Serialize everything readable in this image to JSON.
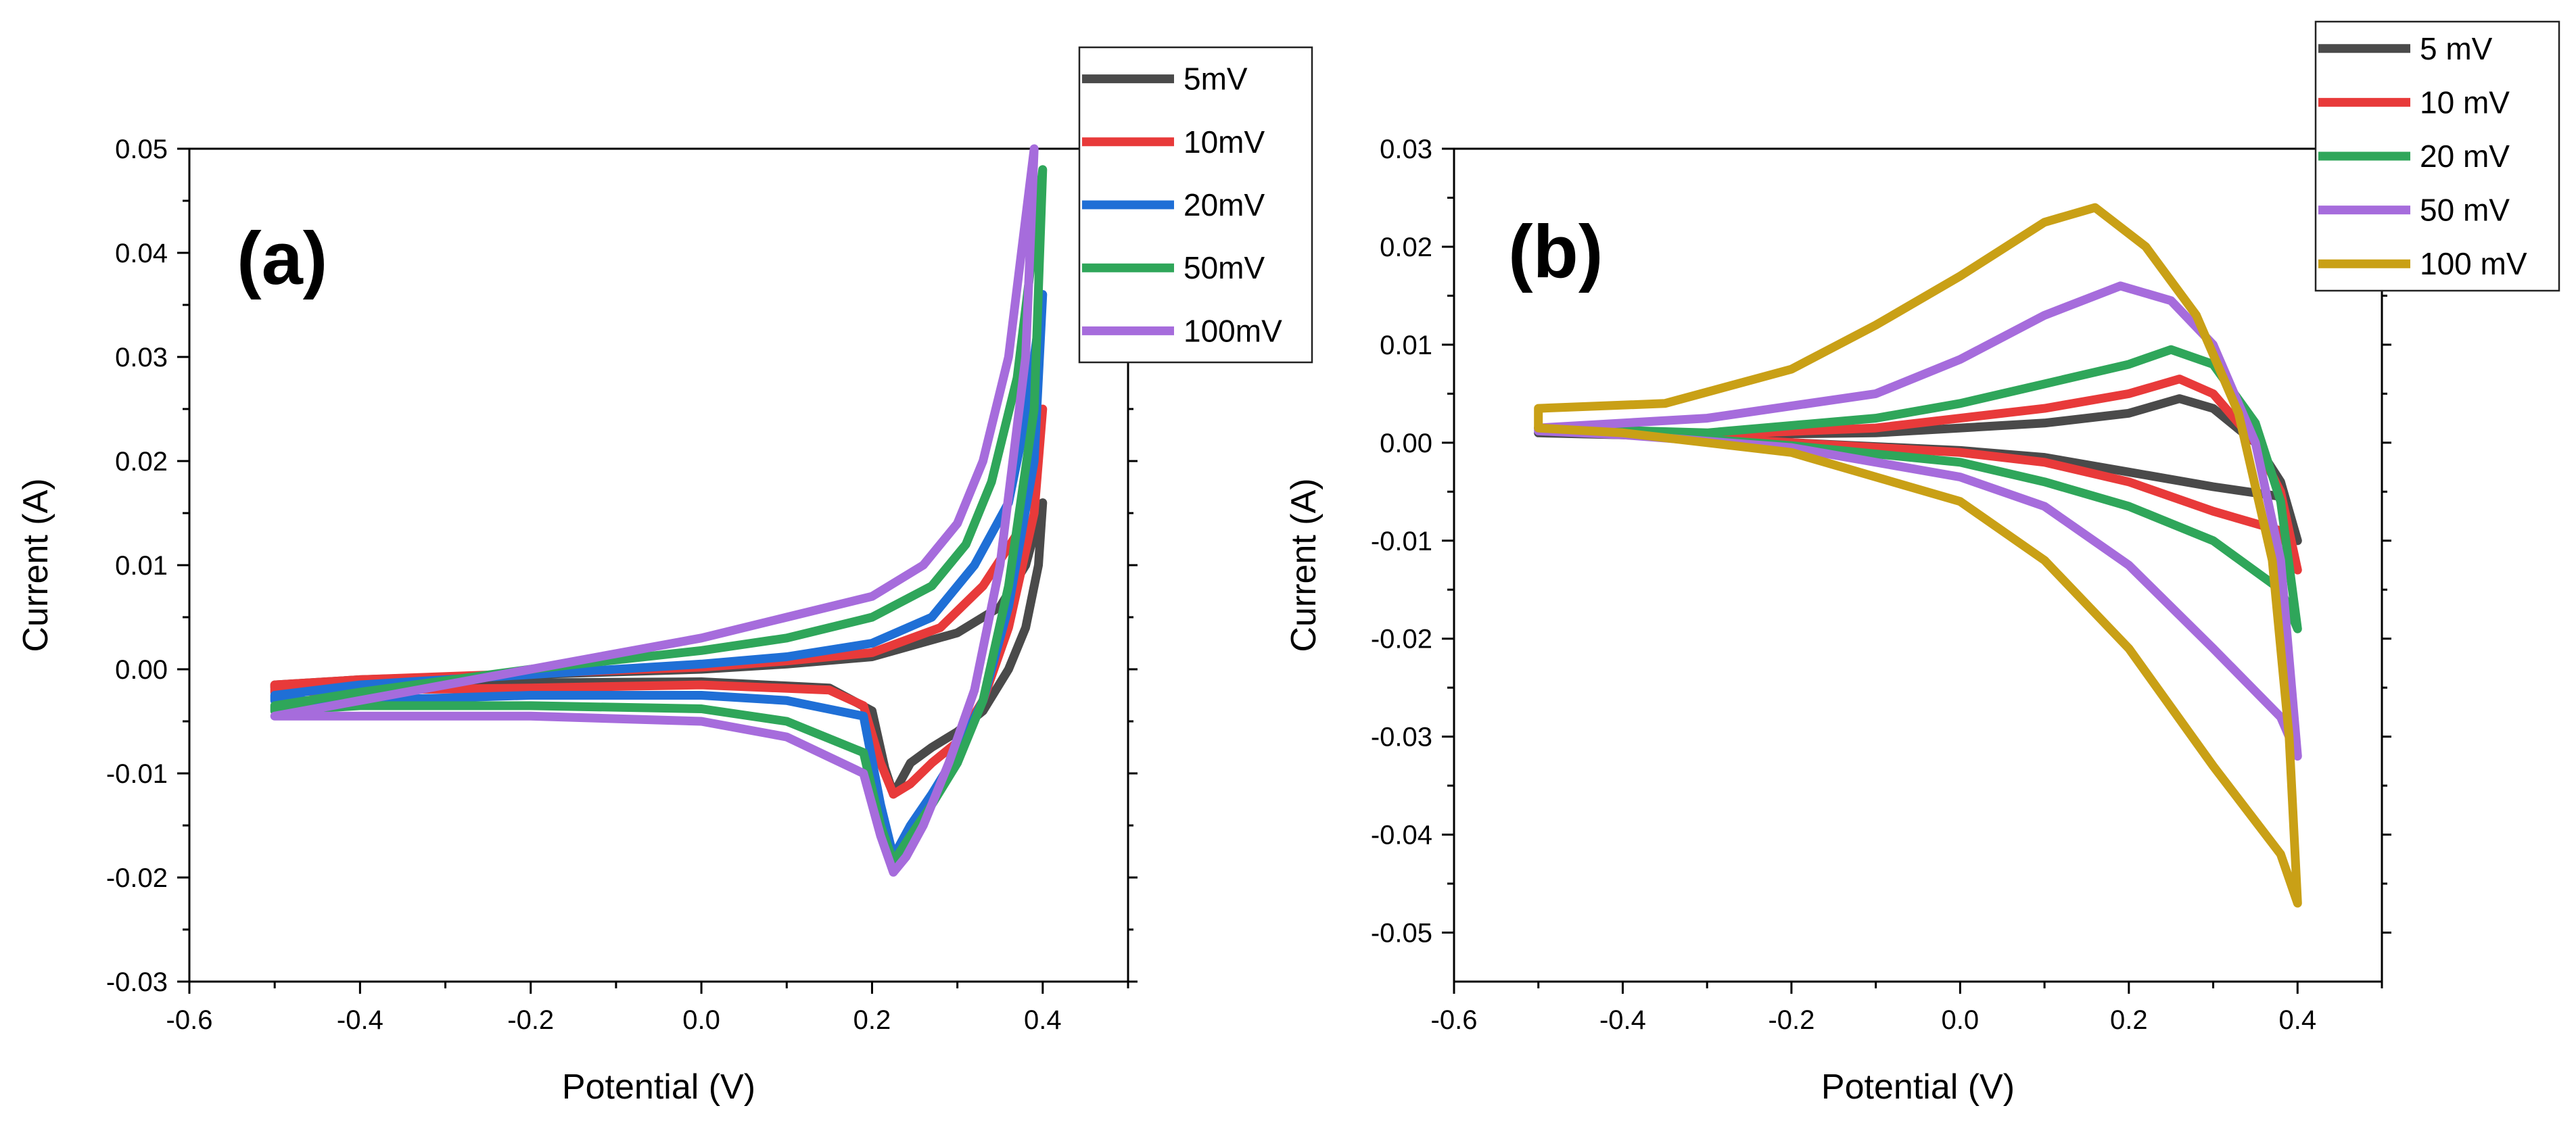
{
  "chart_data": [
    {
      "type": "line",
      "panel_label": "(a)",
      "xlabel": "Potential (V)",
      "ylabel": "Current (A)",
      "xlim": [
        -0.6,
        0.5
      ],
      "ylim": [
        -0.03,
        0.05
      ],
      "xticks": [
        -0.6,
        -0.4,
        -0.2,
        0.0,
        0.2,
        0.4
      ],
      "yticks": [
        -0.03,
        -0.02,
        -0.01,
        0.0,
        0.01,
        0.02,
        0.03,
        0.04,
        0.05
      ],
      "xtick_labels": [
        "-0.6",
        "-0.4",
        "-0.2",
        "0.0",
        "0.2",
        "0.4"
      ],
      "ytick_labels": [
        "-0.03",
        "-0.02",
        "-0.01",
        "0.00",
        "0.01",
        "0.02",
        "0.03",
        "0.04",
        "0.05"
      ],
      "grid": false,
      "legend_position": "top-right, outside plot",
      "series": [
        {
          "name": "5mV",
          "color": "#4a4a4a",
          "points": [
            [
              -0.5,
              -0.0015
            ],
            [
              -0.4,
              -0.001
            ],
            [
              -0.2,
              -0.0005
            ],
            [
              0.0,
              0.0
            ],
            [
              0.1,
              0.0005
            ],
            [
              0.2,
              0.0012
            ],
            [
              0.3,
              0.0035
            ],
            [
              0.35,
              0.006
            ],
            [
              0.38,
              0.01
            ],
            [
              0.4,
              0.016
            ],
            [
              0.395,
              0.01
            ],
            [
              0.38,
              0.004
            ],
            [
              0.36,
              0.0
            ],
            [
              0.33,
              -0.004
            ],
            [
              0.3,
              -0.006
            ],
            [
              0.27,
              -0.0075
            ],
            [
              0.245,
              -0.009
            ],
            [
              0.225,
              -0.012
            ],
            [
              0.215,
              -0.0095
            ],
            [
              0.2,
              -0.004
            ],
            [
              0.15,
              -0.0018
            ],
            [
              0.0,
              -0.0012
            ],
            [
              -0.2,
              -0.0013
            ],
            [
              -0.4,
              -0.0015
            ],
            [
              -0.5,
              -0.0017
            ]
          ]
        },
        {
          "name": "10mV",
          "color": "#e83a3a",
          "points": [
            [
              -0.5,
              -0.0015
            ],
            [
              -0.4,
              -0.001
            ],
            [
              -0.2,
              -0.0004
            ],
            [
              0.0,
              0.0002
            ],
            [
              0.1,
              0.0008
            ],
            [
              0.2,
              0.0016
            ],
            [
              0.28,
              0.004
            ],
            [
              0.33,
              0.008
            ],
            [
              0.37,
              0.013
            ],
            [
              0.4,
              0.025
            ],
            [
              0.39,
              0.015
            ],
            [
              0.36,
              0.004
            ],
            [
              0.33,
              -0.003
            ],
            [
              0.3,
              -0.007
            ],
            [
              0.27,
              -0.009
            ],
            [
              0.245,
              -0.011
            ],
            [
              0.225,
              -0.012
            ],
            [
              0.21,
              -0.009
            ],
            [
              0.19,
              -0.0035
            ],
            [
              0.15,
              -0.002
            ],
            [
              0.0,
              -0.0015
            ],
            [
              -0.2,
              -0.0018
            ],
            [
              -0.4,
              -0.002
            ],
            [
              -0.5,
              -0.0022
            ]
          ]
        },
        {
          "name": "20mV",
          "color": "#1f6fd6",
          "points": [
            [
              -0.5,
              -0.0025
            ],
            [
              -0.4,
              -0.0015
            ],
            [
              -0.2,
              -0.0005
            ],
            [
              0.0,
              0.0005
            ],
            [
              0.1,
              0.0012
            ],
            [
              0.2,
              0.0025
            ],
            [
              0.27,
              0.005
            ],
            [
              0.32,
              0.01
            ],
            [
              0.36,
              0.016
            ],
            [
              0.38,
              0.024
            ],
            [
              0.4,
              0.036
            ],
            [
              0.39,
              0.02
            ],
            [
              0.36,
              0.006
            ],
            [
              0.33,
              -0.003
            ],
            [
              0.3,
              -0.008
            ],
            [
              0.27,
              -0.012
            ],
            [
              0.245,
              -0.015
            ],
            [
              0.225,
              -0.018
            ],
            [
              0.21,
              -0.013
            ],
            [
              0.19,
              -0.0045
            ],
            [
              0.1,
              -0.003
            ],
            [
              0.0,
              -0.0025
            ],
            [
              -0.2,
              -0.0025
            ],
            [
              -0.4,
              -0.003
            ],
            [
              -0.5,
              -0.003
            ]
          ]
        },
        {
          "name": "50mV",
          "color": "#2fa65a",
          "points": [
            [
              -0.5,
              -0.0035
            ],
            [
              -0.4,
              -0.0022
            ],
            [
              -0.2,
              0.0
            ],
            [
              0.0,
              0.0018
            ],
            [
              0.1,
              0.003
            ],
            [
              0.2,
              0.005
            ],
            [
              0.27,
              0.008
            ],
            [
              0.31,
              0.012
            ],
            [
              0.34,
              0.018
            ],
            [
              0.37,
              0.028
            ],
            [
              0.4,
              0.048
            ],
            [
              0.39,
              0.025
            ],
            [
              0.36,
              0.008
            ],
            [
              0.33,
              -0.003
            ],
            [
              0.3,
              -0.009
            ],
            [
              0.27,
              -0.013
            ],
            [
              0.245,
              -0.016
            ],
            [
              0.225,
              -0.0185
            ],
            [
              0.21,
              -0.015
            ],
            [
              0.19,
              -0.008
            ],
            [
              0.1,
              -0.005
            ],
            [
              0.0,
              -0.0038
            ],
            [
              -0.2,
              -0.0035
            ],
            [
              -0.4,
              -0.0035
            ],
            [
              -0.5,
              -0.004
            ]
          ]
        },
        {
          "name": "100mV",
          "color": "#a66cdc",
          "points": [
            [
              -0.5,
              -0.0045
            ],
            [
              -0.4,
              -0.003
            ],
            [
              -0.2,
              0.0
            ],
            [
              0.0,
              0.003
            ],
            [
              0.1,
              0.005
            ],
            [
              0.2,
              0.007
            ],
            [
              0.26,
              0.01
            ],
            [
              0.3,
              0.014
            ],
            [
              0.33,
              0.02
            ],
            [
              0.36,
              0.03
            ],
            [
              0.39,
              0.05
            ],
            [
              0.38,
              0.03
            ],
            [
              0.35,
              0.01
            ],
            [
              0.32,
              -0.002
            ],
            [
              0.29,
              -0.009
            ],
            [
              0.26,
              -0.015
            ],
            [
              0.24,
              -0.018
            ],
            [
              0.225,
              -0.0195
            ],
            [
              0.21,
              -0.016
            ],
            [
              0.19,
              -0.01
            ],
            [
              0.1,
              -0.0065
            ],
            [
              0.0,
              -0.005
            ],
            [
              -0.2,
              -0.0045
            ],
            [
              -0.4,
              -0.0045
            ],
            [
              -0.5,
              -0.0045
            ]
          ]
        }
      ]
    },
    {
      "type": "line",
      "panel_label": "(b)",
      "xlabel": "Potential (V)",
      "ylabel": "Current (A)",
      "xlim": [
        -0.6,
        0.5
      ],
      "ylim": [
        -0.055,
        0.03
      ],
      "xticks": [
        -0.6,
        -0.4,
        -0.2,
        0.0,
        0.2,
        0.4
      ],
      "yticks": [
        -0.05,
        -0.04,
        -0.03,
        -0.02,
        -0.01,
        0.0,
        0.01,
        0.02,
        0.03
      ],
      "xtick_labels": [
        "-0.6",
        "-0.4",
        "-0.2",
        "0.0",
        "0.2",
        "0.4"
      ],
      "ytick_labels": [
        "-0.05",
        "-0.04",
        "-0.03",
        "-0.02",
        "-0.01",
        "0.00",
        "0.01",
        "0.02",
        "0.03"
      ],
      "grid": false,
      "legend_position": "top-right, outside plot",
      "series": [
        {
          "name": "5 mV",
          "color": "#4a4a4a",
          "points": [
            [
              -0.5,
              0.001
            ],
            [
              -0.3,
              0.0008
            ],
            [
              -0.1,
              0.001
            ],
            [
              0.0,
              0.0015
            ],
            [
              0.1,
              0.002
            ],
            [
              0.2,
              0.003
            ],
            [
              0.26,
              0.0045
            ],
            [
              0.3,
              0.0035
            ],
            [
              0.35,
              0.0
            ],
            [
              0.38,
              -0.004
            ],
            [
              0.4,
              -0.01
            ],
            [
              0.38,
              -0.0055
            ],
            [
              0.3,
              -0.0045
            ],
            [
              0.2,
              -0.003
            ],
            [
              0.1,
              -0.0015
            ],
            [
              0.0,
              -0.0008
            ],
            [
              -0.2,
              0.0
            ],
            [
              -0.4,
              0.0008
            ],
            [
              -0.5,
              0.001
            ]
          ]
        },
        {
          "name": "10 mV",
          "color": "#e83a3a",
          "points": [
            [
              -0.5,
              0.0015
            ],
            [
              -0.3,
              0.0008
            ],
            [
              -0.1,
              0.0015
            ],
            [
              0.0,
              0.0025
            ],
            [
              0.1,
              0.0035
            ],
            [
              0.2,
              0.005
            ],
            [
              0.26,
              0.0065
            ],
            [
              0.3,
              0.005
            ],
            [
              0.35,
              0.0
            ],
            [
              0.38,
              -0.005
            ],
            [
              0.4,
              -0.013
            ],
            [
              0.38,
              -0.009
            ],
            [
              0.3,
              -0.007
            ],
            [
              0.2,
              -0.004
            ],
            [
              0.1,
              -0.002
            ],
            [
              0.0,
              -0.001
            ],
            [
              -0.2,
              0.0
            ],
            [
              -0.4,
              0.001
            ],
            [
              -0.5,
              0.0015
            ]
          ]
        },
        {
          "name": "20 mV",
          "color": "#2fa65a",
          "points": [
            [
              -0.5,
              0.0015
            ],
            [
              -0.3,
              0.001
            ],
            [
              -0.1,
              0.0025
            ],
            [
              0.0,
              0.004
            ],
            [
              0.1,
              0.006
            ],
            [
              0.2,
              0.008
            ],
            [
              0.25,
              0.0095
            ],
            [
              0.3,
              0.008
            ],
            [
              0.35,
              0.002
            ],
            [
              0.38,
              -0.006
            ],
            [
              0.4,
              -0.019
            ],
            [
              0.38,
              -0.015
            ],
            [
              0.3,
              -0.01
            ],
            [
              0.2,
              -0.0065
            ],
            [
              0.1,
              -0.004
            ],
            [
              0.0,
              -0.002
            ],
            [
              -0.2,
              -0.0003
            ],
            [
              -0.4,
              0.001
            ],
            [
              -0.5,
              0.0015
            ]
          ]
        },
        {
          "name": "50 mV",
          "color": "#a66cdc",
          "points": [
            [
              -0.5,
              0.0015
            ],
            [
              -0.3,
              0.0025
            ],
            [
              -0.1,
              0.005
            ],
            [
              0.0,
              0.0085
            ],
            [
              0.1,
              0.013
            ],
            [
              0.19,
              0.016
            ],
            [
              0.25,
              0.0145
            ],
            [
              0.3,
              0.01
            ],
            [
              0.35,
              0.0
            ],
            [
              0.38,
              -0.012
            ],
            [
              0.4,
              -0.032
            ],
            [
              0.38,
              -0.028
            ],
            [
              0.3,
              -0.021
            ],
            [
              0.2,
              -0.0125
            ],
            [
              0.1,
              -0.0065
            ],
            [
              0.0,
              -0.0035
            ],
            [
              -0.2,
              -0.0005
            ],
            [
              -0.4,
              0.0008
            ],
            [
              -0.5,
              0.0012
            ]
          ]
        },
        {
          "name": "100 mV",
          "color": "#c9a016",
          "points": [
            [
              -0.5,
              0.0035
            ],
            [
              -0.35,
              0.004
            ],
            [
              -0.2,
              0.0075
            ],
            [
              -0.1,
              0.012
            ],
            [
              0.0,
              0.017
            ],
            [
              0.1,
              0.0225
            ],
            [
              0.16,
              0.024
            ],
            [
              0.22,
              0.02
            ],
            [
              0.28,
              0.013
            ],
            [
              0.33,
              0.003
            ],
            [
              0.37,
              -0.012
            ],
            [
              0.39,
              -0.03
            ],
            [
              0.4,
              -0.047
            ],
            [
              0.38,
              -0.042
            ],
            [
              0.3,
              -0.033
            ],
            [
              0.2,
              -0.021
            ],
            [
              0.1,
              -0.012
            ],
            [
              0.0,
              -0.006
            ],
            [
              -0.2,
              -0.001
            ],
            [
              -0.4,
              0.001
            ],
            [
              -0.5,
              0.0015
            ]
          ]
        }
      ]
    }
  ]
}
